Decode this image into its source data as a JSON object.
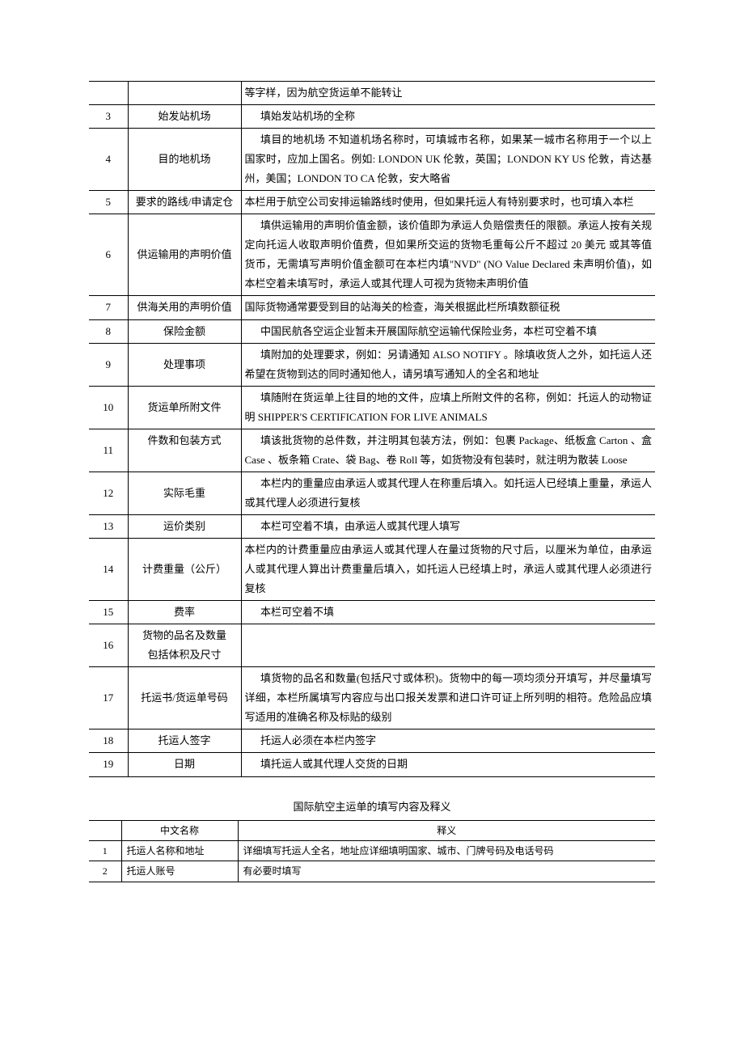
{
  "table1": {
    "rows": [
      {
        "num": "",
        "name": "",
        "desc": "等字样，因为航空货运单不能转让",
        "indent": false
      },
      {
        "num": "3",
        "name": "始发站机场",
        "desc": "填始发站机场的全称",
        "indent": true
      },
      {
        "num": "4",
        "name": "目的地机场",
        "desc": "填目的地机场 不知道机场名称时，可填城市名称，如果某一城市名称用于一个以上国家时，应加上国名。例如: LONDON UK 伦敦，英国；LONDON KY US 伦敦，肯达基州，美国；LONDON TO CA 伦敦，安大略省",
        "indent": true
      },
      {
        "num": "5",
        "name": "要求的路线/申请定仓",
        "desc": "本栏用于航空公司安排运输路线时使用，但如果托运人有特别要求时，也可填入本栏",
        "indent": false
      },
      {
        "num": "6",
        "name": "供运输用的声明价值",
        "desc": "填供运输用的声明价值金额，该价值即为承运人负赔偿责任的限额。承运人按有关规定向托运人收取声明价值费，但如果所交运的货物毛重每公斤不超过 20 美元 或其等值货币，无需填写声明价值金额可在本栏内填\"NVD\" (NO Value Declared 未声明价值)，如本栏空着未填写时，承运人或其代理人可视为货物未声明价值",
        "indent": true
      },
      {
        "num": "7",
        "name": "供海关用的声明价值",
        "desc": "国际货物通常要受到目的站海关的检查，海关根据此栏所填数额征税",
        "indent": false
      },
      {
        "num": "8",
        "name": "保险金额",
        "desc": "中国民航各空运企业暂未开展国际航空运输代保险业务，本栏可空着不填",
        "indent": true
      },
      {
        "num": "9",
        "name": "处理事项",
        "desc": "填附加的处理要求，例如：另请通知 ALSO NOTIFY 。除填收货人之外，如托运人还希望在货物到达的同时通知他人，请另填写通知人的全名和地址",
        "indent": true
      },
      {
        "num": "10",
        "name": "货运单所附文件",
        "desc": "填随附在货运单上往目的地的文件，应填上所附文件的名称，例如：托运人的动物证明 SHIPPER'S CERTIFICATION FOR LIVE ANIMALS",
        "indent": true
      },
      {
        "num": "11",
        "name": "件数和包装方式",
        "desc": "填该批货物的总件数，并注明其包装方法，例如：包裹 Package、纸板盒 Carton 、盒 Case 、板条箱 Crate、袋 Bag、卷 Roll 等，如货物没有包装时，就注明为散装 Loose",
        "indent": true,
        "name_top": true
      },
      {
        "num": "12",
        "name": "实际毛重",
        "desc": "本栏内的重量应由承运人或其代理人在称重后填入。如托运人已经填上重量，承运人或其代理人必须进行复核",
        "indent": true
      },
      {
        "num": "13",
        "name": "运价类别",
        "desc": "本栏可空着不填，由承运人或其代理人填写",
        "indent": true
      },
      {
        "num": "14",
        "name": "计费重量（公斤）",
        "desc": "本栏内的计费重量应由承运人或其代理人在量过货物的尺寸后，以厘米为单位，由承运人或其代理人算出计费重量后填入，如托运人已经填上时，承运人或其代理人必须进行复核",
        "indent": false
      },
      {
        "num": "15",
        "name": "费率",
        "desc": "本栏可空着不填",
        "indent": true
      },
      {
        "num": "16",
        "name": "货物的品名及数量\n包括体积及尺寸",
        "desc": "",
        "indent": false
      },
      {
        "num": "17",
        "name": "托运书/货运单号码",
        "desc": "填货物的品名和数量(包括尺寸或体积)。货物中的每一项均须分开填写，并尽量填写详细，本栏所属填写内容应与出口报关发票和进口许可证上所列明的相符。危险品应填写适用的准确名称及标贴的级别",
        "indent": true
      },
      {
        "num": "18",
        "name": "托运人签字",
        "desc": "托运人必须在本栏内签字",
        "indent": true
      },
      {
        "num": "19",
        "name": "日期",
        "desc": "填托运人或其代理人交货的日期",
        "indent": true
      }
    ]
  },
  "table2": {
    "title": "国际航空主运单的填写内容及释义",
    "header": {
      "name": "中文名称",
      "desc": "释义"
    },
    "rows": [
      {
        "num": "1",
        "name": "托运人名称和地址",
        "desc": "详细填写托运人全名，地址应详细填明国家、城市、门牌号码及电话号码"
      },
      {
        "num": "2",
        "name": "托运人账号",
        "desc": "有必要时填写"
      }
    ]
  }
}
